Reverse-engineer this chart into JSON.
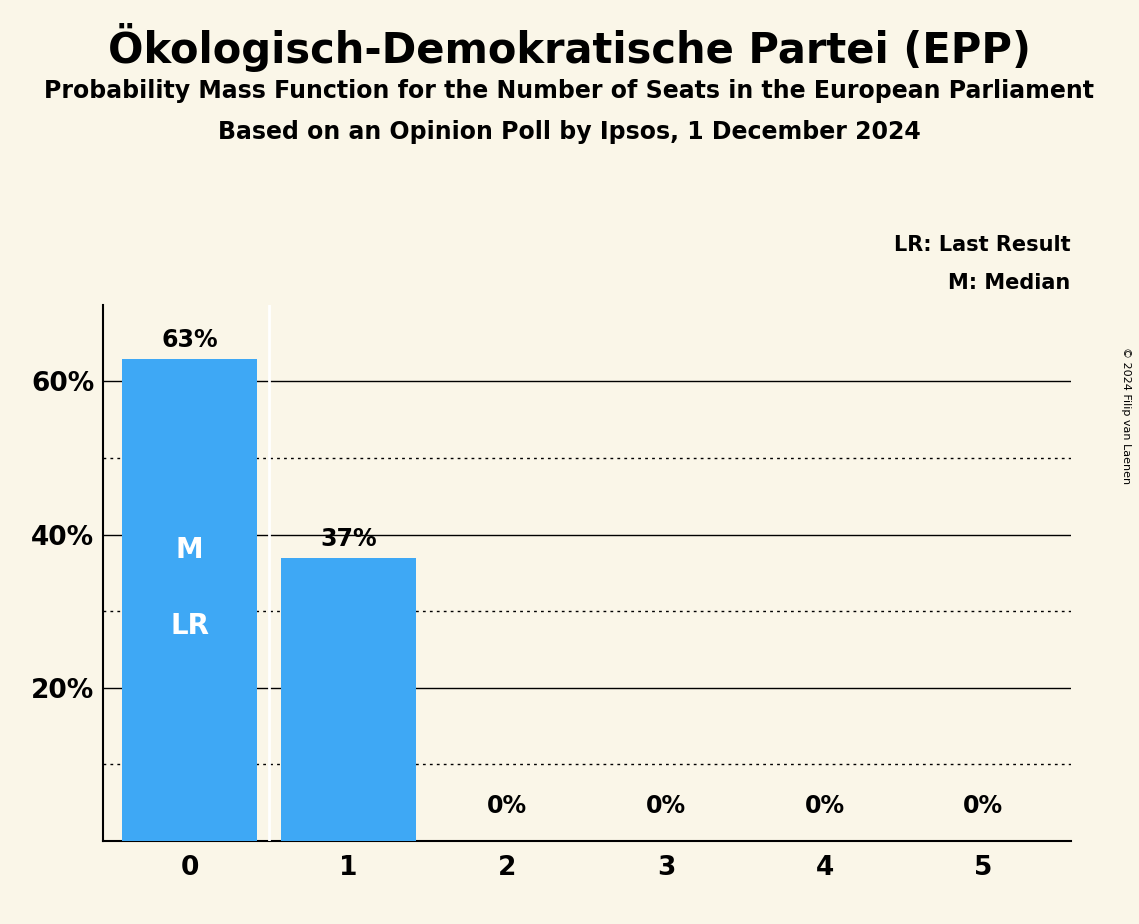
{
  "title": "Ökologisch-Demokratische Partei (EPP)",
  "subtitle1": "Probability Mass Function for the Number of Seats in the European Parliament",
  "subtitle2": "Based on an Opinion Poll by Ipsos, 1 December 2024",
  "copyright": "© 2024 Filip van Laenen",
  "categories": [
    0,
    1,
    2,
    3,
    4,
    5
  ],
  "values": [
    0.63,
    0.37,
    0.0,
    0.0,
    0.0,
    0.0
  ],
  "bar_color": "#3EA8F5",
  "background_color": "#FAF6E8",
  "bar_labels": [
    "63%",
    "37%",
    "0%",
    "0%",
    "0%",
    "0%"
  ],
  "median_bar": 0,
  "last_result_bar": 0,
  "ylim": [
    0,
    0.7
  ],
  "yticks": [
    0.0,
    0.2,
    0.4,
    0.6
  ],
  "ytick_labels": [
    "",
    "20%",
    "40%",
    "60%"
  ],
  "solid_hlines": [
    0.2,
    0.4,
    0.6
  ],
  "dotted_hlines": [
    0.1,
    0.3,
    0.5
  ],
  "legend_lr": "LR: Last Result",
  "legend_m": "M: Median",
  "title_fontsize": 30,
  "subtitle_fontsize": 17,
  "bar_label_fontsize": 17,
  "axis_fontsize": 19,
  "in_bar_fontsize": 20,
  "legend_fontsize": 15,
  "copyright_fontsize": 8
}
